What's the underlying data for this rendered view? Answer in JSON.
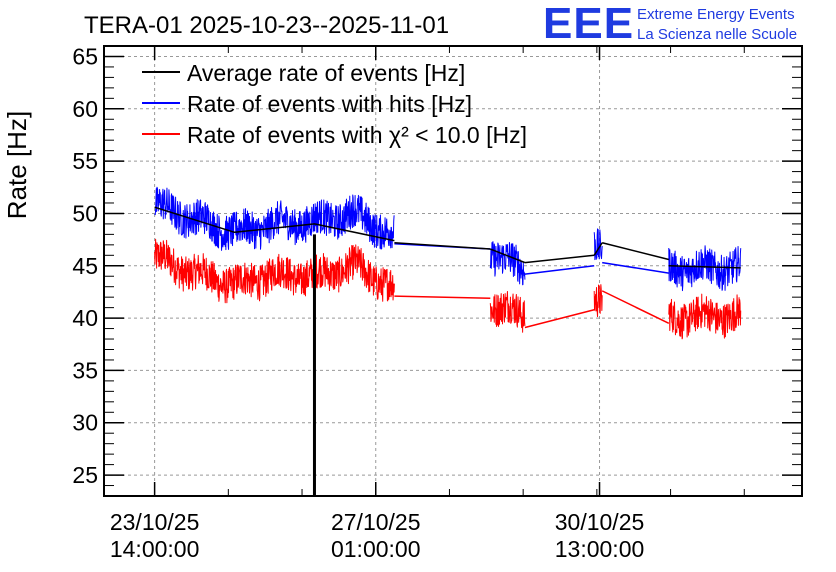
{
  "chart_data": {
    "type": "line",
    "title": "TERA-01 2025-10-23--2025-11-01",
    "ylabel": "Rate [Hz]",
    "xlabel": "",
    "ylim": [
      23,
      66
    ],
    "grid": true,
    "legend_position": "top-left",
    "logo": {
      "mark": "EEE",
      "line1": "Extreme Energy Events",
      "line2": "La Scienza nelle Scuole"
    },
    "y_ticks": [
      25,
      30,
      35,
      40,
      45,
      50,
      55,
      60,
      65
    ],
    "x_ticks": [
      {
        "t": 0,
        "date": "23/10/25",
        "time": "14:00:00"
      },
      {
        "t": 83,
        "date": "27/10/25",
        "time": "01:00:00"
      },
      {
        "t": 167,
        "date": "30/10/25",
        "time": "13:00:00"
      }
    ],
    "xlim_hours": [
      -19,
      243
    ],
    "series": [
      {
        "name": "Average rate of events [Hz]",
        "color": "#000000",
        "segments": [
          {
            "t": [
              0,
              30,
              60,
              90
            ],
            "v": [
              50.6,
              48.2,
              49.0,
              47.4
            ]
          },
          {
            "t": [
              126,
              139
            ],
            "v": [
              46.6,
              45.3
            ]
          },
          {
            "t": [
              165,
              168
            ],
            "v": [
              46.0,
              47.2
            ]
          },
          {
            "t": [
              193,
              220
            ],
            "v": [
              45.0,
              44.8
            ]
          }
        ],
        "connectors": [
          [
            90,
            47.2,
            126,
            46.6
          ],
          [
            139,
            45.3,
            165,
            46.0
          ],
          [
            168,
            47.2,
            193,
            45.6
          ]
        ],
        "spike": {
          "t": 60,
          "v_from": 23,
          "v_to": 48
        }
      },
      {
        "name": "Rate of events with hits [Hz]",
        "color": "#0000ff",
        "noise": 1.7,
        "segments": [
          {
            "t": [
              0,
              15,
              30,
              45,
              60,
              75,
              90
            ],
            "v": [
              50.8,
              49.5,
              48.2,
              49.0,
              49.2,
              50.0,
              47.8
            ]
          },
          {
            "t": [
              126,
              139
            ],
            "v": [
              46.3,
              44.6
            ]
          },
          {
            "t": [
              165,
              168
            ],
            "v": [
              46.8,
              47.0
            ]
          },
          {
            "t": [
              193,
              220
            ],
            "v": [
              44.8,
              44.8
            ]
          }
        ],
        "connectors": [
          [
            90,
            47.1,
            126,
            46.6
          ],
          [
            139,
            44.2,
            165,
            45.0
          ],
          [
            168,
            45.3,
            193,
            44.3
          ]
        ]
      },
      {
        "name": "Rate of events with χ² < 10.0 [Hz]",
        "color": "#ff0000",
        "noise": 1.7,
        "segments": [
          {
            "t": [
              0,
              15,
              30,
              45,
              60,
              75,
              90
            ],
            "v": [
              45.8,
              44.3,
              43.2,
              44.2,
              44.0,
              45.0,
              42.8
            ]
          },
          {
            "t": [
              126,
              139
            ],
            "v": [
              41.3,
              40.3
            ]
          },
          {
            "t": [
              165,
              168
            ],
            "v": [
              41.5,
              42.0
            ]
          },
          {
            "t": [
              193,
              220
            ],
            "v": [
              40.1,
              40.3
            ]
          }
        ],
        "connectors": [
          [
            90,
            42.1,
            126,
            41.9
          ],
          [
            139,
            39.1,
            165,
            40.8
          ],
          [
            168,
            42.6,
            193,
            39.5
          ]
        ]
      }
    ]
  }
}
